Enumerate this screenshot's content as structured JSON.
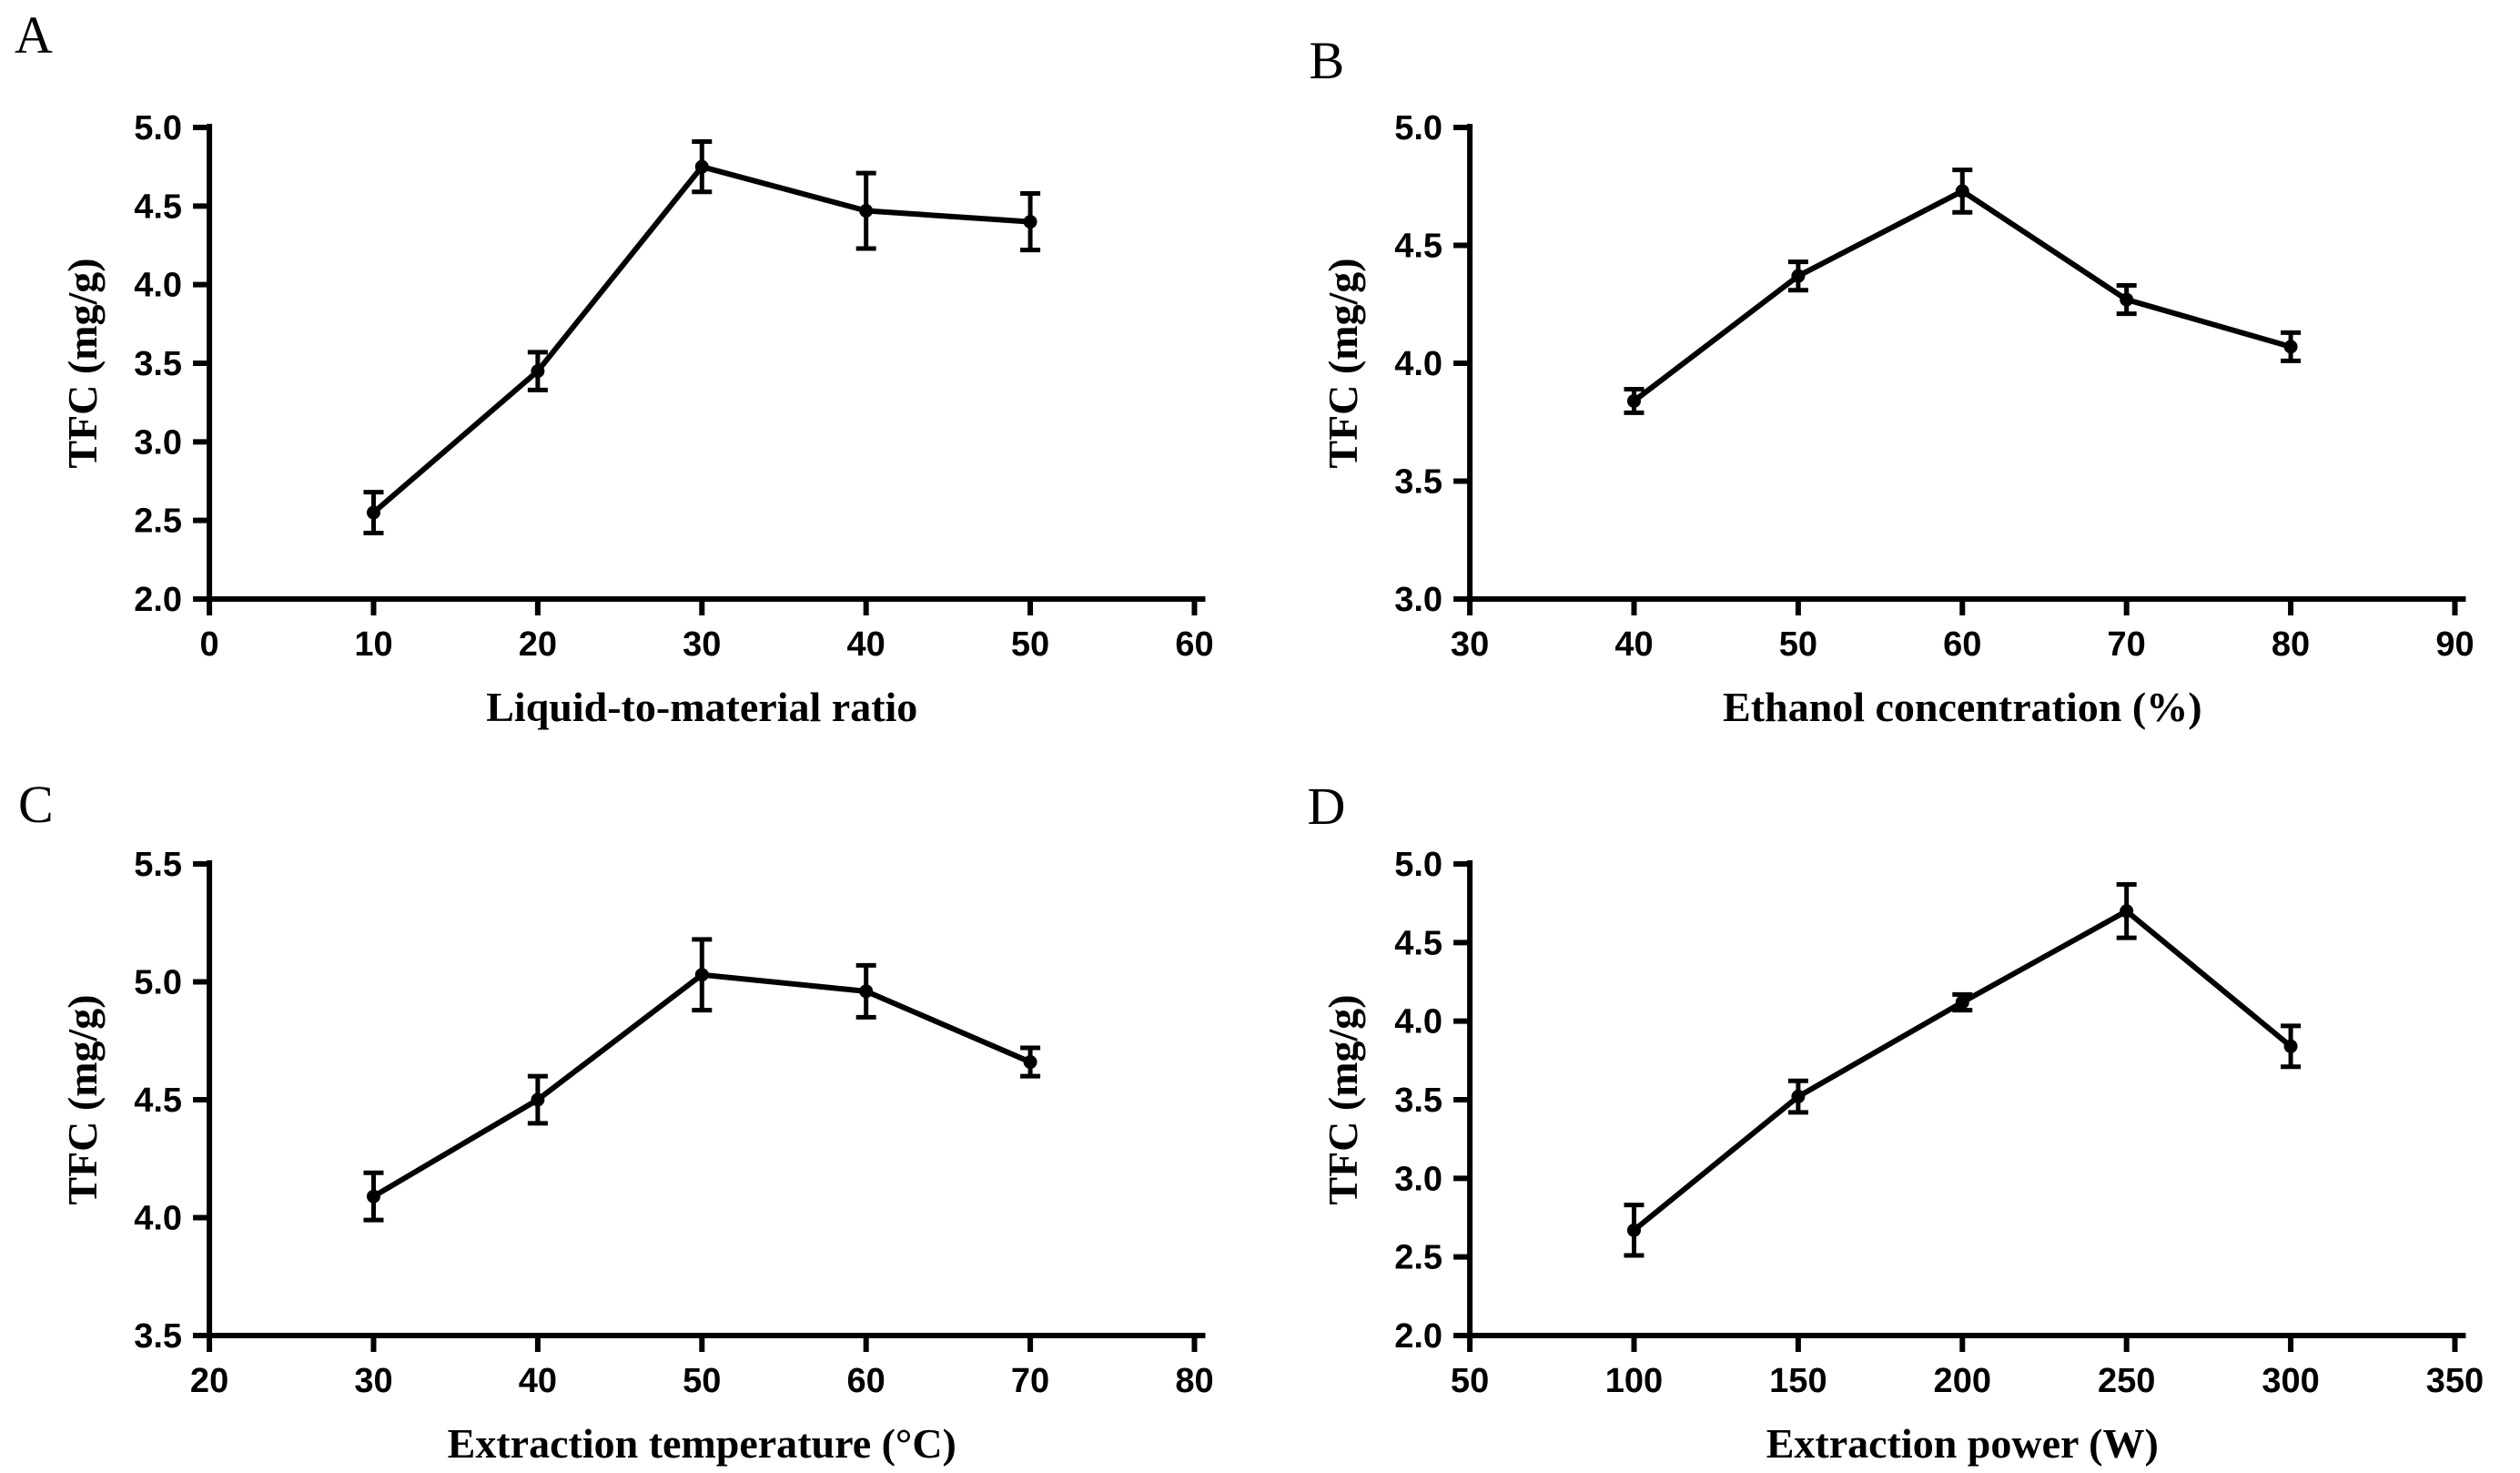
{
  "page": {
    "background": "#ffffff",
    "ink_color": "#000000",
    "panel_letters": [
      "A",
      "B",
      "C",
      "D"
    ]
  },
  "chart_data": [
    {
      "type": "line",
      "panel_label": "A",
      "title": "",
      "xlabel": "Liquid-to-material ratio",
      "ylabel": "TFC (mg/g)",
      "xlim": [
        0,
        60
      ],
      "ylim": [
        2.0,
        5.0
      ],
      "xticks": [
        "0",
        "10",
        "20",
        "30",
        "40",
        "50",
        "60"
      ],
      "yticks": [
        "2.0",
        "2.5",
        "3.0",
        "3.5",
        "4.0",
        "4.5",
        "5.0"
      ],
      "x": [
        10,
        20,
        30,
        40,
        50
      ],
      "y": [
        2.55,
        3.45,
        4.75,
        4.47,
        4.4
      ],
      "yerr": [
        0.13,
        0.12,
        0.16,
        0.24,
        0.18
      ],
      "grid": false,
      "legend": "none",
      "marker": "circle",
      "line_color": "#000000"
    },
    {
      "type": "line",
      "panel_label": "B",
      "title": "",
      "xlabel": "Ethanol concentration (%)",
      "ylabel": "TFC (mg/g)",
      "xlim": [
        30,
        90
      ],
      "ylim": [
        3.0,
        5.0
      ],
      "xticks": [
        "30",
        "40",
        "50",
        "60",
        "70",
        "80",
        "90"
      ],
      "yticks": [
        "3.0",
        "3.5",
        "4.0",
        "4.5",
        "5.0"
      ],
      "x": [
        40,
        50,
        60,
        70,
        80
      ],
      "y": [
        3.84,
        4.37,
        4.73,
        4.27,
        4.07
      ],
      "yerr": [
        0.05,
        0.06,
        0.09,
        0.06,
        0.06
      ],
      "grid": false,
      "legend": "none",
      "marker": "circle",
      "line_color": "#000000"
    },
    {
      "type": "line",
      "panel_label": "C",
      "title": "",
      "xlabel": "Extraction temperature (°C)",
      "ylabel": "TFC (mg/g)",
      "xlim": [
        20,
        80
      ],
      "ylim": [
        3.5,
        5.5
      ],
      "xticks": [
        "20",
        "30",
        "40",
        "50",
        "60",
        "70",
        "80"
      ],
      "yticks": [
        "3.5",
        "4.0",
        "4.5",
        "5.0",
        "5.5"
      ],
      "x": [
        30,
        40,
        50,
        60,
        70
      ],
      "y": [
        4.09,
        4.5,
        5.03,
        4.96,
        4.66
      ],
      "yerr": [
        0.1,
        0.1,
        0.15,
        0.11,
        0.06
      ],
      "grid": false,
      "legend": "none",
      "marker": "circle",
      "line_color": "#000000"
    },
    {
      "type": "line",
      "panel_label": "D",
      "title": "",
      "xlabel": "Extraction power (W)",
      "ylabel": "TFC (mg/g)",
      "xlim": [
        50,
        350
      ],
      "ylim": [
        2.0,
        5.0
      ],
      "xticks": [
        "50",
        "100",
        "150",
        "200",
        "250",
        "300",
        "350"
      ],
      "yticks": [
        "2.0",
        "2.5",
        "3.0",
        "3.5",
        "4.0",
        "4.5",
        "5.0"
      ],
      "x": [
        100,
        150,
        200,
        250,
        300
      ],
      "y": [
        2.67,
        3.52,
        4.12,
        4.7,
        3.84
      ],
      "yerr": [
        0.16,
        0.1,
        0.05,
        0.17,
        0.13
      ],
      "grid": false,
      "legend": "none",
      "marker": "circle",
      "line_color": "#000000"
    }
  ]
}
